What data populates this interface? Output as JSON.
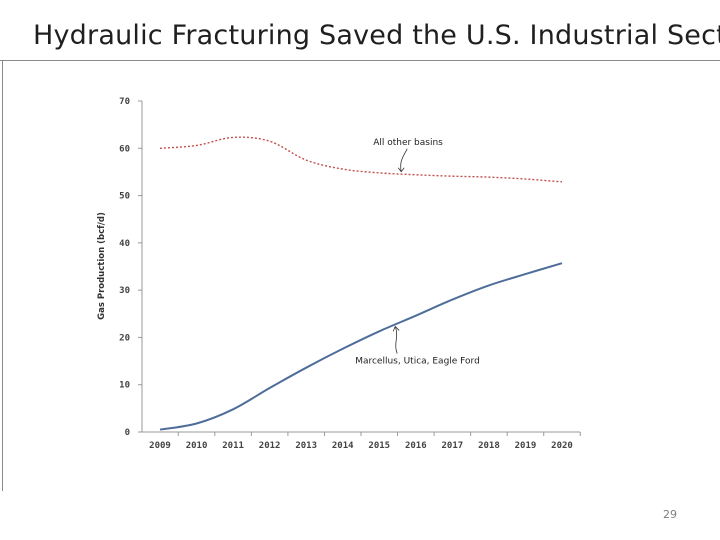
{
  "slide": {
    "title": "Hydraulic Fracturing Saved the U.S. Industrial Sector",
    "page_number": "29"
  },
  "chart_data": {
    "type": "line",
    "title": "",
    "xlabel": "",
    "ylabel": "Gas Production (bcf/d)",
    "x": [
      "2009",
      "2010",
      "2011",
      "2012",
      "2013",
      "2014",
      "2015",
      "2016",
      "2017",
      "2018",
      "2019",
      "2020"
    ],
    "ylim": [
      0,
      70
    ],
    "yticks": [
      0,
      10,
      20,
      30,
      40,
      50,
      60,
      70
    ],
    "grid": false,
    "series": [
      {
        "name": "All other basins",
        "style": "dashed",
        "color": "#c0504d",
        "values": [
          60,
          60.6,
          62.3,
          61.5,
          57.5,
          55.6,
          54.8,
          54.4,
          54.1,
          53.9,
          53.5,
          52.9
        ]
      },
      {
        "name": "Marcellus, Utica, Eagle Ford",
        "style": "solid",
        "color": "#4f6d9a",
        "values": [
          0.5,
          1.8,
          4.8,
          9.3,
          13.6,
          17.6,
          21.3,
          24.6,
          28.0,
          31.0,
          33.4,
          35.7
        ]
      }
    ],
    "annotations": [
      {
        "text": "All other basins",
        "series": 0
      },
      {
        "text": "Marcellus, Utica, Eagle Ford",
        "series": 1
      }
    ]
  }
}
